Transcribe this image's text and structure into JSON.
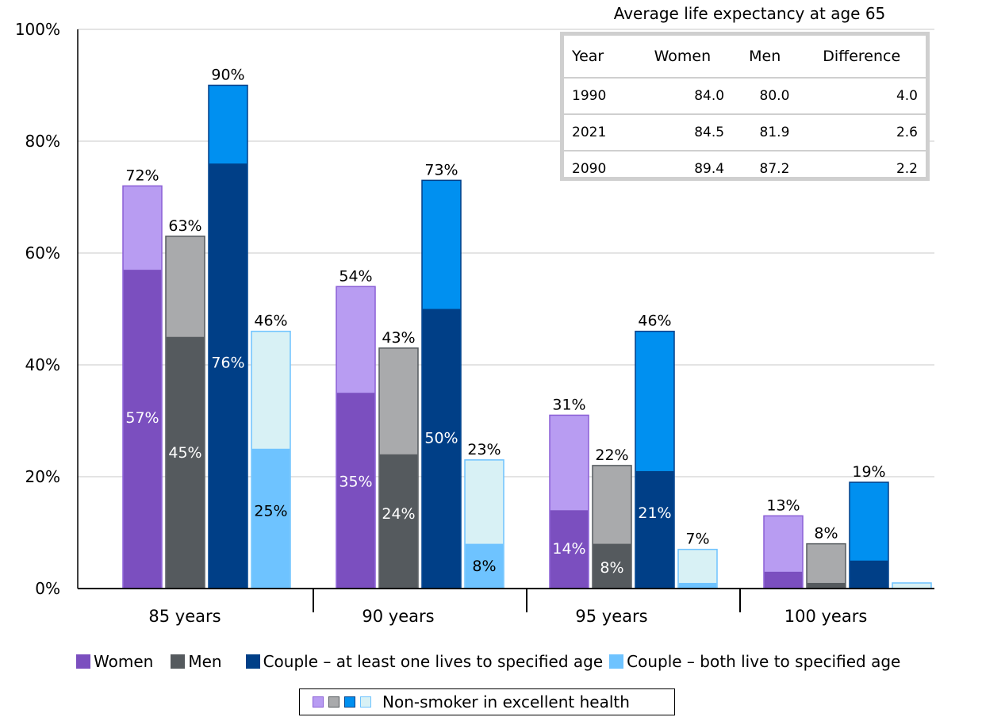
{
  "chart_data": {
    "type": "bar",
    "categories": [
      "85 years",
      "90 years",
      "95 years",
      "100 years"
    ],
    "yticks": [
      "0%",
      "20%",
      "40%",
      "60%",
      "80%",
      "100%"
    ],
    "ylim": [
      0,
      100
    ],
    "grid": true,
    "series": [
      {
        "name": "Women",
        "average": [
          57,
          35,
          14,
          3
        ],
        "non_smoker": [
          72,
          54,
          31,
          13
        ],
        "average_labels": [
          "57%",
          "35%",
          "14%",
          ""
        ],
        "non_smoker_labels": [
          "72%",
          "54%",
          "31%",
          "13%"
        ],
        "color": "#7b4fbf",
        "light_color": "#b89cf2",
        "light_border": "#8a5fd6"
      },
      {
        "name": "Men",
        "average": [
          45,
          24,
          8,
          1
        ],
        "non_smoker": [
          63,
          43,
          22,
          8
        ],
        "average_labels": [
          "45%",
          "24%",
          "8%",
          ""
        ],
        "non_smoker_labels": [
          "63%",
          "43%",
          "22%",
          "8%"
        ],
        "color": "#555a5e",
        "light_color": "#a9aaac",
        "light_border": "#555a5e"
      },
      {
        "name": "Couple – at least one lives to specified age",
        "average": [
          76,
          50,
          21,
          5
        ],
        "non_smoker": [
          90,
          73,
          46,
          19
        ],
        "average_labels": [
          "76%",
          "50%",
          "21%",
          ""
        ],
        "non_smoker_labels": [
          "90%",
          "73%",
          "46%",
          "19%"
        ],
        "color": "#003f87",
        "light_color": "#0090f0",
        "light_border": "#003f87"
      },
      {
        "name": "Couple – both live to specified age",
        "average": [
          25,
          8,
          1,
          0
        ],
        "non_smoker": [
          46,
          23,
          7,
          1
        ],
        "average_labels": [
          "25%",
          "8%",
          "",
          ""
        ],
        "non_smoker_labels": [
          "46%",
          "23%",
          "7%",
          ""
        ],
        "color": "#6ec3ff",
        "light_color": "#d8f1f5",
        "light_border": "#6ec3ff"
      }
    ],
    "legend": {
      "items": [
        "Women",
        "Men",
        "Couple – at least one lives to specified age",
        "Couple – both live to specified age"
      ],
      "non_smoker_label": "Non-smoker in excellent health"
    }
  },
  "life_table": {
    "title": "Average life expectancy at age 65",
    "headers": [
      "Year",
      "Women",
      "Men",
      "Difference"
    ],
    "rows": [
      [
        "1990",
        "84.0",
        "80.0",
        "4.0"
      ],
      [
        "2021",
        "84.5",
        "81.9",
        "2.6"
      ],
      [
        "2090",
        "89.4",
        "87.2",
        "2.2"
      ]
    ]
  }
}
